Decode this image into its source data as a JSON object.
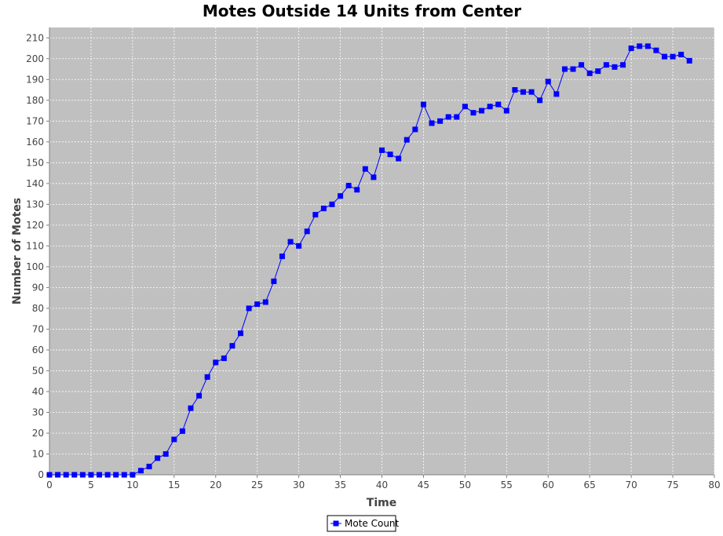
{
  "chart_data": {
    "type": "line",
    "title": "Motes Outside 14 Units from Center",
    "xlabel": "Time",
    "ylabel": "Number of Motes",
    "xlim": [
      0,
      80
    ],
    "ylim": [
      0,
      215
    ],
    "x_ticks": [
      0,
      5,
      10,
      15,
      20,
      25,
      30,
      35,
      40,
      45,
      50,
      55,
      60,
      65,
      70,
      75,
      80
    ],
    "y_ticks": [
      0,
      10,
      20,
      30,
      40,
      50,
      60,
      70,
      80,
      90,
      100,
      110,
      120,
      130,
      140,
      150,
      160,
      170,
      180,
      190,
      200,
      210
    ],
    "grid": true,
    "legend_position": "bottom",
    "background_color": "#c0c0c0",
    "series": [
      {
        "name": "Mote Count",
        "color": "#0000ff",
        "marker": "square",
        "x": [
          0,
          1,
          2,
          3,
          4,
          5,
          6,
          7,
          8,
          9,
          10,
          11,
          12,
          13,
          14,
          15,
          16,
          17,
          18,
          19,
          20,
          21,
          22,
          23,
          24,
          25,
          26,
          27,
          28,
          29,
          30,
          31,
          32,
          33,
          34,
          35,
          36,
          37,
          38,
          39,
          40,
          41,
          42,
          43,
          44,
          45,
          46,
          47,
          48,
          49,
          50,
          51,
          52,
          53,
          54,
          55,
          56,
          57,
          58,
          59,
          60,
          61,
          62,
          63,
          64,
          65,
          66,
          67,
          68,
          69,
          70,
          71,
          72,
          73,
          74,
          75,
          76,
          77
        ],
        "values": [
          0,
          0,
          0,
          0,
          0,
          0,
          0,
          0,
          0,
          0,
          0,
          2,
          4,
          8,
          10,
          17,
          21,
          32,
          38,
          47,
          54,
          56,
          62,
          68,
          80,
          82,
          83,
          93,
          105,
          112,
          110,
          117,
          125,
          128,
          130,
          134,
          139,
          137,
          147,
          143,
          156,
          154,
          152,
          161,
          166,
          178,
          169,
          170,
          172,
          172,
          177,
          174,
          175,
          177,
          178,
          175,
          185,
          184,
          184,
          180,
          189,
          183,
          195,
          195,
          197,
          193,
          194,
          197,
          196,
          197,
          205,
          206,
          206,
          204,
          201,
          201,
          202,
          199
        ]
      }
    ]
  }
}
